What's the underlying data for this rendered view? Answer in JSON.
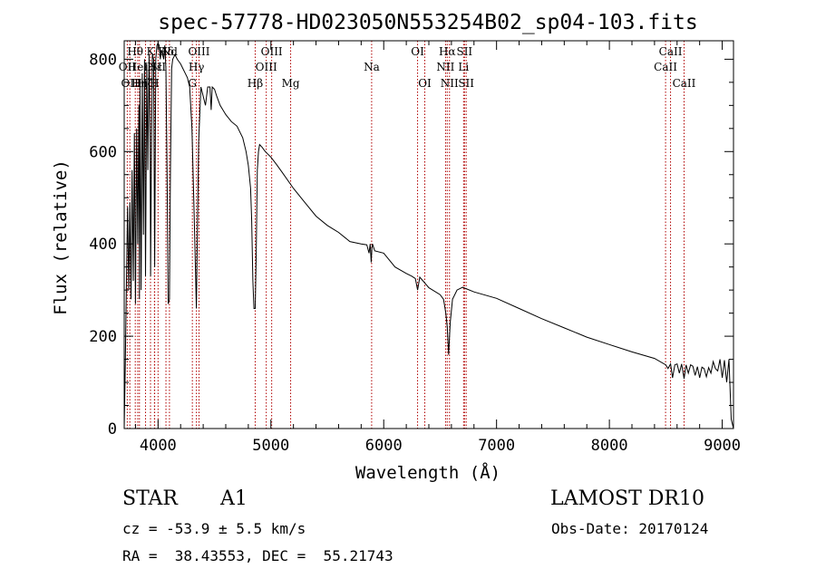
{
  "chart_data": {
    "type": "line",
    "title": "spec-57778-HD023050N553254B02_sp04-103.fits",
    "xlabel": "Wavelength (Å)",
    "ylabel": "Flux (relative)",
    "xlim": [
      3700,
      9100
    ],
    "ylim": [
      0,
      840
    ],
    "xticks": [
      4000,
      5000,
      6000,
      7000,
      8000,
      9000
    ],
    "yticks": [
      0,
      200,
      400,
      600,
      800
    ],
    "series": [
      {
        "x": [
          3700,
          3710,
          3720,
          3730,
          3740,
          3750,
          3760,
          3770,
          3780,
          3790,
          3800,
          3810,
          3820,
          3830,
          3835,
          3840,
          3850,
          3860,
          3870,
          3880,
          3889,
          3900,
          3910,
          3920,
          3930,
          3934,
          3940,
          3950,
          3960,
          3970,
          3980,
          3990,
          4000,
          4010,
          4020,
          4030,
          4040,
          4050,
          4060,
          4070,
          4080,
          4090,
          4101,
          4110,
          4120,
          4130,
          4150,
          4170,
          4200,
          4220,
          4240,
          4260,
          4280,
          4300,
          4320,
          4340,
          4350,
          4360,
          4380,
          4400,
          4420,
          4440,
          4460,
          4471,
          4480,
          4500,
          4520,
          4550,
          4600,
          4650,
          4700,
          4750,
          4780,
          4800,
          4820,
          4830,
          4840,
          4850,
          4861,
          4870,
          4880,
          4890,
          4900,
          4920,
          4950,
          5000,
          5050,
          5100,
          5200,
          5300,
          5400,
          5500,
          5600,
          5700,
          5800,
          5850,
          5870,
          5880,
          5889,
          5895,
          5900,
          5920,
          6000,
          6100,
          6200,
          6250,
          6280,
          6300,
          6320,
          6400,
          6500,
          6530,
          6550,
          6563,
          6575,
          6590,
          6610,
          6650,
          6700,
          6800,
          7000,
          7200,
          7400,
          7600,
          7800,
          8000,
          8200,
          8400,
          8500,
          8520,
          8542,
          8560,
          8580,
          8600,
          8620,
          8640,
          8662,
          8680,
          8700,
          8720,
          8740,
          8760,
          8780,
          8800,
          8820,
          8840,
          8860,
          8880,
          8900,
          8920,
          8940,
          8960,
          8980,
          9000,
          9020,
          9040,
          9060,
          9080,
          9100
        ],
        "values": [
          0,
          140,
          320,
          480,
          300,
          490,
          280,
          560,
          320,
          640,
          270,
          650,
          400,
          700,
          280,
          740,
          300,
          770,
          420,
          800,
          330,
          790,
          560,
          810,
          620,
          330,
          560,
          810,
          800,
          350,
          800,
          830,
          835,
          830,
          800,
          820,
          810,
          800,
          830,
          780,
          550,
          270,
          280,
          560,
          780,
          800,
          810,
          800,
          790,
          780,
          770,
          760,
          740,
          650,
          460,
          260,
          450,
          620,
          740,
          720,
          700,
          740,
          740,
          690,
          740,
          735,
          720,
          700,
          680,
          665,
          655,
          630,
          600,
          570,
          520,
          450,
          320,
          260,
          260,
          380,
          560,
          600,
          615,
          610,
          600,
          588,
          572,
          555,
          520,
          490,
          460,
          440,
          425,
          405,
          400,
          398,
          380,
          400,
          360,
          390,
          400,
          385,
          380,
          350,
          336,
          330,
          325,
          300,
          328,
          305,
          290,
          280,
          250,
          220,
          160,
          230,
          280,
          300,
          306,
          296,
          282,
          260,
          238,
          218,
          198,
          182,
          166,
          152,
          138,
          130,
          140,
          110,
          138,
          140,
          120,
          140,
          108,
          138,
          120,
          138,
          135,
          115,
          134,
          110,
          133,
          130,
          112,
          132,
          120,
          145,
          130,
          125,
          150,
          110,
          148,
          100,
          150,
          20,
          0
        ]
      }
    ],
    "lines": [
      {
        "x": 3727,
        "label": "OII",
        "row": 2
      },
      {
        "x": 3750,
        "label": "OII",
        "row": 3
      },
      {
        "x": 3798,
        "label": "Hθ",
        "row": 1
      },
      {
        "x": 3820,
        "label": "HeI",
        "row": 2
      },
      {
        "x": 3835,
        "label": "Hη",
        "row": 3
      },
      {
        "x": 3889,
        "label": "Hζ",
        "row": 3
      },
      {
        "x": 3933,
        "label": "K",
        "row": 1
      },
      {
        "x": 3968,
        "label": "H",
        "row": 3
      },
      {
        "x": 3970,
        "label": "Hε",
        "row": 2
      },
      {
        "x": 4000,
        "label": "SII",
        "row": 2
      },
      {
        "x": 4070,
        "label": "Hδ",
        "row": 1
      },
      {
        "x": 4101,
        "label": "Nd",
        "row": 1
      },
      {
        "x": 4304,
        "label": "G",
        "row": 3
      },
      {
        "x": 4340,
        "label": "Hγ",
        "row": 2
      },
      {
        "x": 4363,
        "label": "OIII",
        "row": 1
      },
      {
        "x": 4861,
        "label": "Hβ",
        "row": 3
      },
      {
        "x": 4959,
        "label": "OIII",
        "row": 2
      },
      {
        "x": 5007,
        "label": "OIII",
        "row": 1
      },
      {
        "x": 5175,
        "label": "Mg",
        "row": 3
      },
      {
        "x": 5893,
        "label": "Na",
        "row": 2
      },
      {
        "x": 6300,
        "label": "OI",
        "row": 1
      },
      {
        "x": 6364,
        "label": "OI",
        "row": 3
      },
      {
        "x": 6548,
        "label": "NII",
        "row": 2
      },
      {
        "x": 6563,
        "label": "Hα",
        "row": 1
      },
      {
        "x": 6583,
        "label": "NII",
        "row": 3
      },
      {
        "x": 6708,
        "label": "Li",
        "row": 2
      },
      {
        "x": 6716,
        "label": "SII",
        "row": 1
      },
      {
        "x": 6731,
        "label": "SII",
        "row": 3
      },
      {
        "x": 8498,
        "label": "CaII",
        "row": 2
      },
      {
        "x": 8542,
        "label": "CaII",
        "row": 1
      },
      {
        "x": 8662,
        "label": "CaII",
        "row": 3
      }
    ],
    "colors": {
      "spectrum": "#000000",
      "marker": "#b00000",
      "axes": "#000000"
    }
  },
  "info": {
    "object_class": "STAR",
    "subclass": "A1",
    "survey": "LAMOST DR10",
    "redshift": "cz = -53.9 ± 5.5 km/s",
    "obs_date": "Obs-Date: 20170124",
    "coords": "RA =  38.43553, DEC =  55.21743"
  }
}
